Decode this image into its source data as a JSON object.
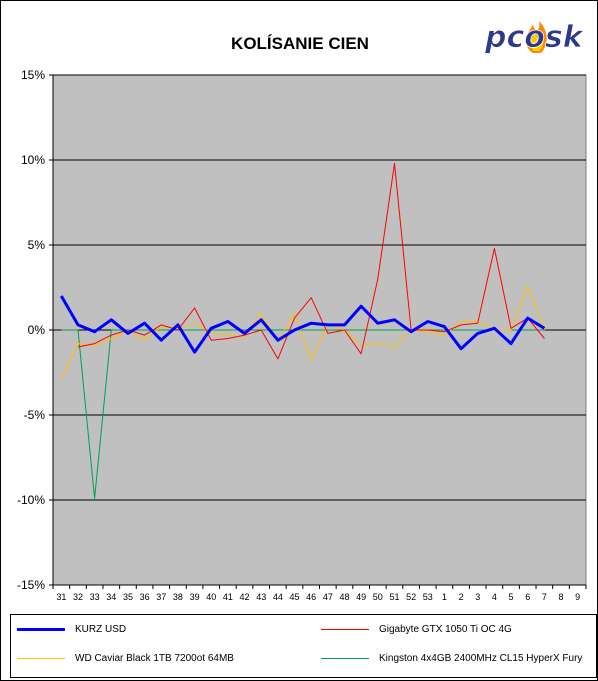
{
  "chart_data": {
    "type": "line",
    "title": "KOLÍSANIE CIEN",
    "logo_text": "pcosk",
    "ylim": [
      -15,
      15
    ],
    "y_ticks": [
      15,
      10,
      5,
      0,
      -5,
      -10,
      -15
    ],
    "y_tick_labels": [
      "15%",
      "10%",
      "5%",
      "0%",
      "-5%",
      "-10%",
      "-15%"
    ],
    "categories": [
      "31",
      "32",
      "33",
      "34",
      "35",
      "36",
      "37",
      "38",
      "39",
      "40",
      "41",
      "42",
      "43",
      "44",
      "45",
      "46",
      "47",
      "48",
      "49",
      "50",
      "51",
      "52",
      "53",
      "1",
      "2",
      "3",
      "4",
      "5",
      "6",
      "7",
      "8",
      "9"
    ],
    "grid": true,
    "legend_position": "bottom",
    "series": [
      {
        "name": "KURZ USD",
        "color": "#0000ff",
        "width": 3,
        "values": [
          2.0,
          0.3,
          -0.1,
          0.6,
          -0.2,
          0.4,
          -0.6,
          0.3,
          -1.3,
          0.1,
          0.5,
          -0.2,
          0.6,
          -0.6,
          0.0,
          0.4,
          0.3,
          0.3,
          1.4,
          0.4,
          0.6,
          -0.1,
          0.5,
          0.2,
          -1.1,
          -0.2,
          0.1,
          -0.8,
          0.7,
          0.1,
          null,
          null
        ]
      },
      {
        "name": "Gigabyte GTX 1050 Ti OC 4G",
        "color": "#ff0000",
        "width": 1,
        "values": [
          null,
          -1.0,
          -0.8,
          -0.3,
          0.0,
          -0.3,
          0.3,
          0.0,
          1.3,
          -0.6,
          -0.5,
          -0.3,
          0.0,
          -1.7,
          0.7,
          1.9,
          -0.2,
          0.0,
          -1.4,
          3.0,
          9.8,
          0.0,
          0.0,
          -0.1,
          0.3,
          0.4,
          4.8,
          0.1,
          0.7,
          -0.5,
          null,
          null
        ]
      },
      {
        "name": "WD Caviar Black 1TB 7200ot 64MB",
        "color": "#ffc000",
        "width": 1,
        "values": [
          -2.9,
          -0.8,
          -0.9,
          -0.5,
          -0.1,
          -0.6,
          0.2,
          0.1,
          0.4,
          -0.2,
          -0.3,
          -0.4,
          1.0,
          -0.7,
          1.0,
          -1.8,
          0.3,
          0.0,
          -0.9,
          -0.8,
          -1.0,
          0.0,
          -0.1,
          -0.3,
          0.5,
          0.5,
          0.0,
          0.0,
          2.6,
          0.0,
          null,
          null
        ]
      },
      {
        "name": "Kingston 4x4GB 2400MHz CL15 HyperX Fury",
        "color": "#00a050",
        "width": 1,
        "values": [
          0.0,
          0.0,
          -9.9,
          0.0,
          0.0,
          0.0,
          0.0,
          0.0,
          0.0,
          0.0,
          0.0,
          0.0,
          0.0,
          0.0,
          0.0,
          0.0,
          0.0,
          0.0,
          0.0,
          0.0,
          0.0,
          0.0,
          0.0,
          0.0,
          0.0,
          0.0,
          0.0,
          0.0,
          0.0,
          0.0,
          null,
          null
        ]
      }
    ]
  }
}
